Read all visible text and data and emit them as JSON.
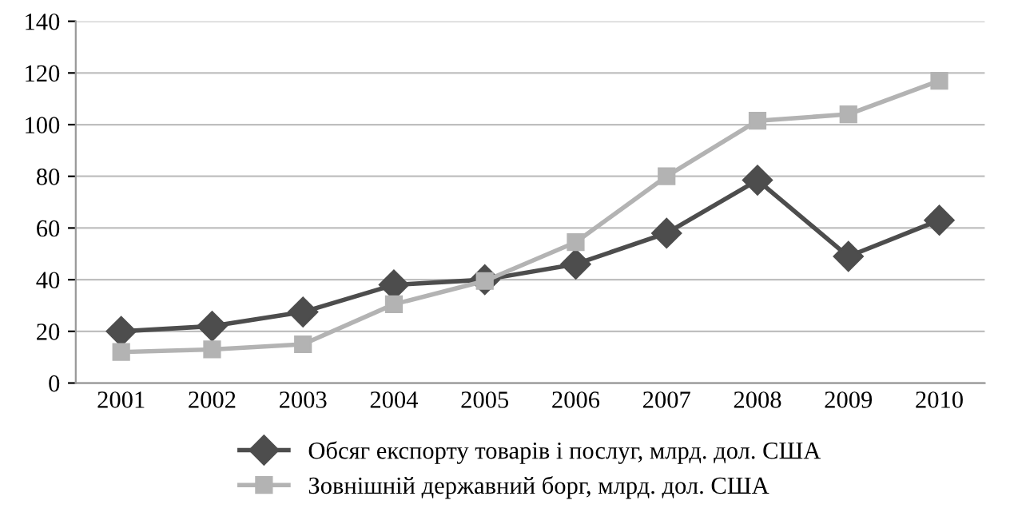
{
  "chart_data": {
    "type": "line",
    "categories": [
      "2001",
      "2002",
      "2003",
      "2004",
      "2005",
      "2006",
      "2007",
      "2008",
      "2009",
      "2010"
    ],
    "series": [
      {
        "name": "Обсяг експорту товарів і послуг, млрд. дол. США",
        "color": "#4d4d4d",
        "marker": "diamond",
        "values": [
          20,
          22,
          27.5,
          38,
          40,
          46,
          58,
          78.5,
          49,
          63
        ]
      },
      {
        "name": "Зовнішній державний борг, млрд. дол. США",
        "color": "#b3b3b3",
        "marker": "square",
        "values": [
          12,
          13,
          15,
          30.5,
          39.5,
          54.5,
          80,
          101.5,
          104,
          117
        ]
      }
    ],
    "ylim": [
      0,
      140
    ],
    "yticks": [
      0,
      20,
      40,
      60,
      80,
      100,
      120,
      140
    ],
    "grid": "y",
    "legend": "bottom"
  }
}
